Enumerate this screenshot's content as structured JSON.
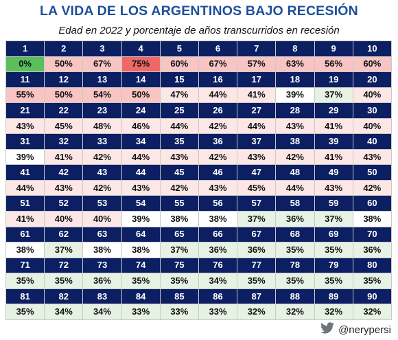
{
  "header": {
    "title": "LA VIDA DE LOS ARGENTINOS BAJO RECESIÓN",
    "subtitle": "Edad en 2022 y porcentaje de años transcurridos en recesión"
  },
  "footer": {
    "handle": "@nerypersi",
    "icon": "twitter-bird-icon"
  },
  "colors": {
    "age_row_bg": "#0c1f63",
    "zero_cell": "#5bbf5b",
    "max_red": "#ef6868",
    "high_pink": "#f8c4c4",
    "mid_pink": "#fde6e6",
    "neutral": "#ffffff",
    "low_green": "#e6f2e4"
  },
  "chart_data": {
    "type": "table",
    "title": "LA VIDA DE LOS ARGENTINOS BAJO RECESIÓN",
    "subtitle": "Edad en 2022 y porcentaje de años transcurridos en recesión",
    "columns_per_row": 10,
    "ages": [
      1,
      2,
      3,
      4,
      5,
      6,
      7,
      8,
      9,
      10,
      11,
      12,
      13,
      14,
      15,
      16,
      17,
      18,
      19,
      20,
      21,
      22,
      23,
      24,
      25,
      26,
      27,
      28,
      29,
      30,
      31,
      32,
      33,
      34,
      35,
      36,
      37,
      38,
      39,
      40,
      41,
      42,
      43,
      44,
      45,
      46,
      47,
      48,
      49,
      50,
      51,
      52,
      53,
      54,
      55,
      56,
      57,
      58,
      59,
      60,
      61,
      62,
      63,
      64,
      65,
      66,
      67,
      68,
      69,
      70,
      71,
      72,
      73,
      74,
      75,
      76,
      77,
      78,
      79,
      80,
      81,
      82,
      83,
      84,
      85,
      86,
      87,
      88,
      89,
      90
    ],
    "values": [
      0,
      50,
      67,
      75,
      60,
      67,
      57,
      63,
      56,
      60,
      55,
      50,
      54,
      50,
      47,
      44,
      41,
      39,
      37,
      40,
      43,
      45,
      48,
      46,
      44,
      42,
      44,
      43,
      41,
      40,
      39,
      41,
      42,
      44,
      43,
      42,
      43,
      42,
      41,
      43,
      44,
      43,
      42,
      43,
      42,
      43,
      45,
      44,
      43,
      42,
      41,
      40,
      40,
      39,
      38,
      38,
      37,
      36,
      37,
      38,
      38,
      37,
      38,
      38,
      37,
      36,
      36,
      35,
      35,
      36,
      35,
      35,
      36,
      35,
      35,
      34,
      35,
      35,
      35,
      35,
      35,
      34,
      34,
      33,
      33,
      33,
      32,
      32,
      32,
      32
    ],
    "value_unit": "%"
  }
}
